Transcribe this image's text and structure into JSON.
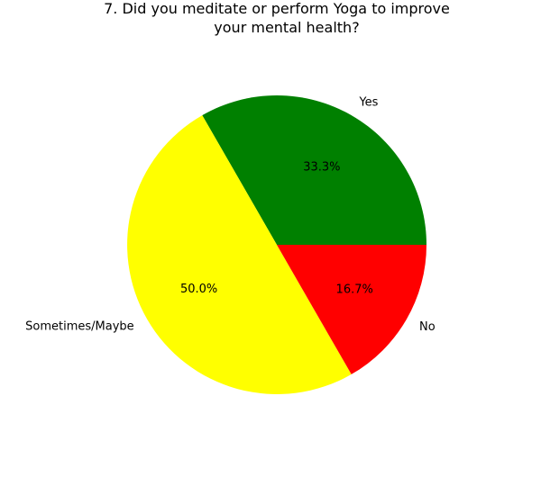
{
  "chart_data": {
    "type": "pie",
    "title_lines": [
      "7. Did you meditate or perform Yoga to improve",
      "your mental health?"
    ],
    "slices": [
      {
        "label": "Yes",
        "value": 33.3,
        "pct_label": "33.3%",
        "color": "#008000"
      },
      {
        "label": "Sometimes/Maybe",
        "value": 50.0,
        "pct_label": "50.0%",
        "color": "#ffff00"
      },
      {
        "label": "No",
        "value": 16.7,
        "pct_label": "16.7%",
        "color": "#ff0000"
      }
    ],
    "start_angle_deg": 0,
    "direction": "counterclockwise",
    "legend": "none"
  }
}
